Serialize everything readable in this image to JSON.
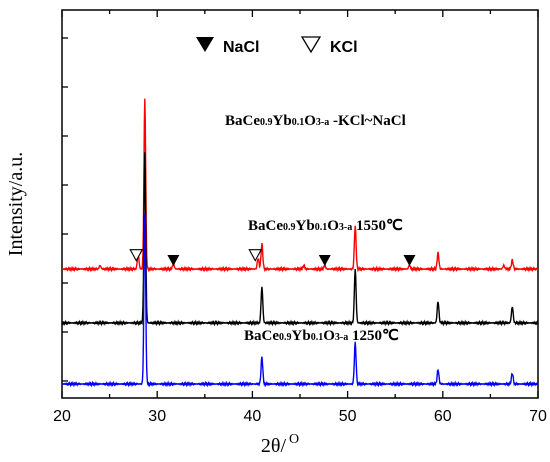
{
  "chart_data": {
    "type": "line",
    "xlabel_main": "2θ/",
    "xlabel_unit": "O",
    "ylabel": "Intensity/a.u.",
    "xlim": [
      20,
      70
    ],
    "xticks": [
      "20",
      "30",
      "40",
      "50",
      "60",
      "70"
    ],
    "grid": false,
    "legend": {
      "placement": "top-center",
      "items": [
        {
          "label": "NaCl",
          "marker": "filled-down-triangle"
        },
        {
          "label": "KCl",
          "marker": "open-down-triangle"
        }
      ]
    },
    "series": [
      {
        "color": "#ff0000",
        "annotation": {
          "a": "BaCe",
          "b": "0.9",
          "c": "Yb",
          "d": "0.1",
          "e": "O",
          "f": "3-a",
          "g": " -KCl~NaCl"
        },
        "baseline": 0.64,
        "peaks": [
          {
            "x": 24.0,
            "h": 0.02
          },
          {
            "x": 28.0,
            "h": 0.08
          },
          {
            "x": 28.7,
            "h": 0.95
          },
          {
            "x": 31.7,
            "h": 0.03
          },
          {
            "x": 40.6,
            "h": 0.06
          },
          {
            "x": 41.0,
            "h": 0.14
          },
          {
            "x": 45.4,
            "h": 0.02
          },
          {
            "x": 47.6,
            "h": 0.02
          },
          {
            "x": 50.8,
            "h": 0.24
          },
          {
            "x": 56.5,
            "h": 0.02
          },
          {
            "x": 59.5,
            "h": 0.09
          },
          {
            "x": 66.4,
            "h": 0.02
          },
          {
            "x": 67.3,
            "h": 0.05
          }
        ]
      },
      {
        "color": "#000000",
        "annotation": {
          "a": "BaCe",
          "b": "0.9",
          "c": "Yb",
          "d": "0.1",
          "e": "O",
          "f": "3-a",
          "g": " 1550℃"
        },
        "baseline": 0.34,
        "peaks": [
          {
            "x": 28.7,
            "h": 0.95
          },
          {
            "x": 41.0,
            "h": 0.2
          },
          {
            "x": 50.8,
            "h": 0.3
          },
          {
            "x": 59.5,
            "h": 0.12
          },
          {
            "x": 67.3,
            "h": 0.09
          }
        ]
      },
      {
        "color": "#0000ff",
        "annotation": {
          "a": "BaCe",
          "b": "0.9",
          "c": "Yb",
          "d": "0.1",
          "e": "O",
          "f": "3-a",
          "g": "  1250℃"
        },
        "baseline": 0.0,
        "peaks": [
          {
            "x": 28.7,
            "h": 0.95
          },
          {
            "x": 41.0,
            "h": 0.15
          },
          {
            "x": 50.8,
            "h": 0.23
          },
          {
            "x": 59.5,
            "h": 0.08
          },
          {
            "x": 67.3,
            "h": 0.06
          }
        ]
      }
    ],
    "markers": [
      {
        "x": 27.8,
        "y": 0.72,
        "type": "open"
      },
      {
        "x": 31.7,
        "y": 0.69,
        "type": "filled"
      },
      {
        "x": 40.3,
        "y": 0.72,
        "type": "open"
      },
      {
        "x": 47.6,
        "y": 0.69,
        "type": "filled"
      },
      {
        "x": 56.5,
        "y": 0.69,
        "type": "filled"
      }
    ]
  }
}
